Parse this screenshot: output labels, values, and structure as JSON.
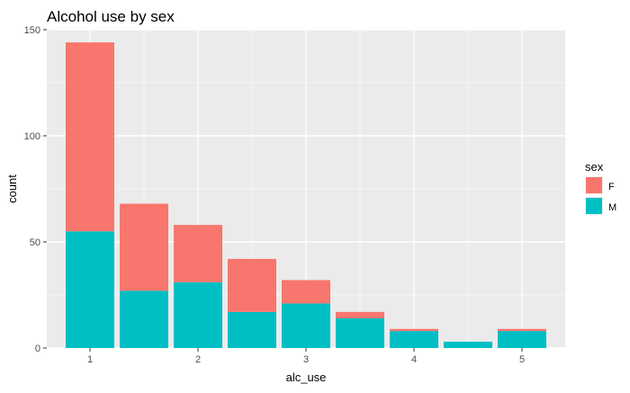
{
  "chart_data": {
    "type": "bar",
    "stacked": true,
    "title": "Alcohol use by sex",
    "xlabel": "alc_use",
    "ylabel": "count",
    "x": [
      1,
      1.5,
      2,
      2.5,
      3,
      3.5,
      4,
      4.5,
      5
    ],
    "series": [
      {
        "name": "F",
        "color": "#F8766D",
        "values": [
          89,
          41,
          27,
          25,
          11,
          3,
          1,
          0,
          1
        ]
      },
      {
        "name": "M",
        "color": "#00BFC4",
        "values": [
          55,
          27,
          31,
          17,
          21,
          14,
          8,
          3,
          8
        ]
      }
    ],
    "xticks": [
      1,
      2,
      3,
      4,
      5
    ],
    "yticks": [
      0,
      50,
      100,
      150
    ],
    "xlim": [
      0.6,
      5.4
    ],
    "ylim": [
      0,
      150
    ],
    "legend": {
      "title": "sex",
      "placement": "right"
    },
    "grid": true,
    "panel_background": "#EBEBEB"
  }
}
